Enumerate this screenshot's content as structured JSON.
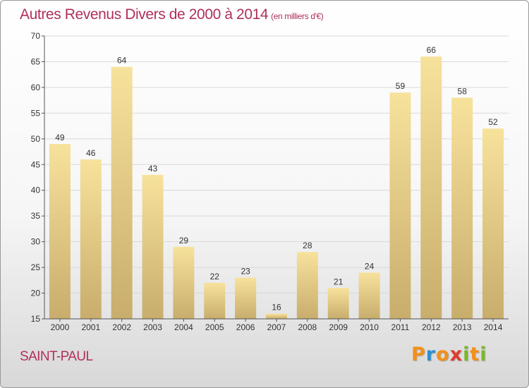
{
  "chart_title": "Autres Revenus Divers de 2000 à 2014",
  "chart_subtitle": "(en milliers d'€)",
  "location": "SAINT-PAUL",
  "brand": {
    "letters": [
      "P",
      "r",
      "o",
      "x",
      "i",
      "t",
      "i"
    ],
    "colors": [
      "#f39019",
      "#2e8fd0",
      "#f39019",
      "#e03a2e",
      "#7ab929",
      "#f39019",
      "#7ab929"
    ]
  },
  "colors": {
    "title": "#b0305a",
    "bar_top": "#f7e29c",
    "bar_bottom": "#c8ad6c",
    "grid": "#d9d9d9",
    "axis": "#555555"
  },
  "chart_data": {
    "type": "bar",
    "title": "Autres Revenus Divers de 2000 à 2014",
    "subtitle": "(en milliers d'€)",
    "xlabel": "",
    "ylabel": "",
    "categories": [
      "2000",
      "2001",
      "2002",
      "2003",
      "2004",
      "2005",
      "2006",
      "2007",
      "2008",
      "2009",
      "2010",
      "2011",
      "2012",
      "2013",
      "2014"
    ],
    "values": [
      49,
      46,
      64,
      43,
      29,
      22,
      23,
      16,
      28,
      21,
      24,
      59,
      66,
      58,
      52
    ],
    "ylim": [
      15,
      70
    ],
    "yticks": [
      15,
      20,
      25,
      30,
      35,
      40,
      45,
      50,
      55,
      60,
      65,
      70
    ],
    "grid": true,
    "data_labels": true
  }
}
